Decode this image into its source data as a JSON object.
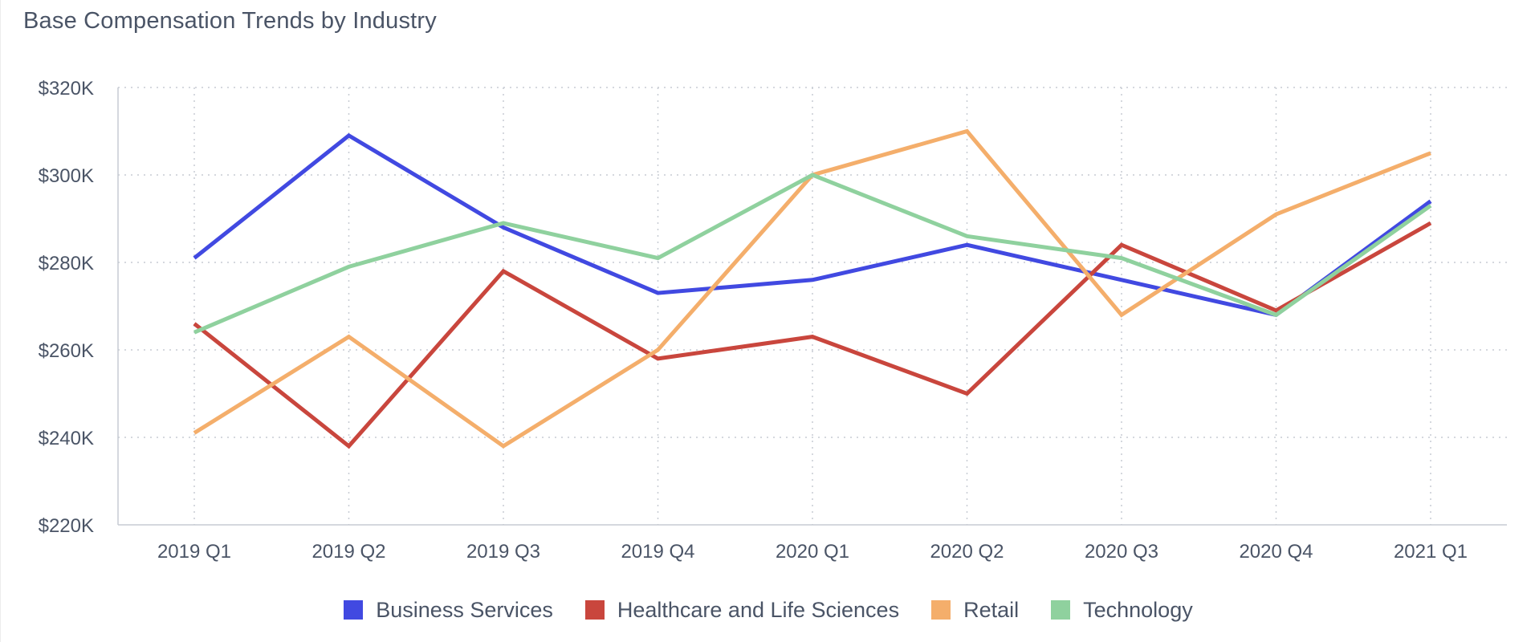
{
  "chart_data": {
    "type": "line",
    "title": "Base Compensation Trends by Industry",
    "xlabel": "",
    "ylabel": "",
    "categories": [
      "2019 Q1",
      "2019 Q2",
      "2019 Q3",
      "2019 Q4",
      "2020 Q1",
      "2020 Q2",
      "2020 Q3",
      "2020 Q4",
      "2021 Q1"
    ],
    "y_ticks": [
      "$220K",
      "$240K",
      "$260K",
      "$280K",
      "$300K",
      "$320K"
    ],
    "y_tick_values": [
      220,
      240,
      260,
      280,
      300,
      320
    ],
    "ylim": [
      220,
      320
    ],
    "grid": true,
    "legend_position": "bottom",
    "series": [
      {
        "name": "Business Services",
        "color": "#4149e1",
        "values": [
          281,
          309,
          288,
          273,
          276,
          284,
          276,
          268,
          294
        ]
      },
      {
        "name": "Healthcare and Life Sciences",
        "color": "#c9463d",
        "values": [
          266,
          238,
          278,
          258,
          263,
          250,
          284,
          269,
          289
        ]
      },
      {
        "name": "Retail",
        "color": "#f4ae6b",
        "values": [
          241,
          263,
          238,
          260,
          300,
          310,
          268,
          291,
          305
        ]
      },
      {
        "name": "Technology",
        "color": "#8fd19e",
        "values": [
          264,
          279,
          289,
          281,
          300,
          286,
          281,
          268,
          293
        ]
      }
    ]
  }
}
